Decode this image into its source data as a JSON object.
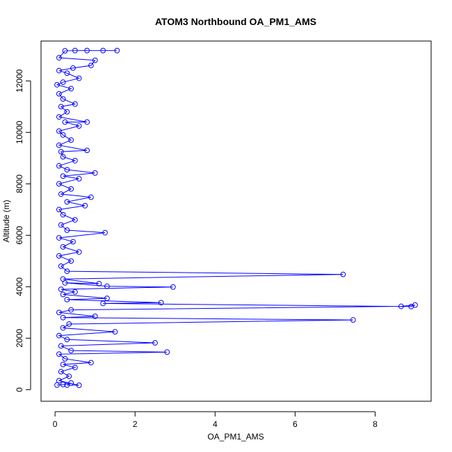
{
  "chart_data": {
    "type": "scatter",
    "title": "ATOM3 Northbound OA_PM1_AMS",
    "xlabel": "OA_PM1_AMS",
    "ylabel": "Altitude (m)",
    "xlim": [
      -0.35,
      9.4
    ],
    "ylim": [
      -450,
      13550
    ],
    "x_ticks": [
      0,
      2,
      4,
      6,
      8
    ],
    "y_ticks": [
      0,
      2000,
      4000,
      6000,
      8000,
      10000,
      12000
    ],
    "grid": false,
    "legend": "none",
    "point_style": "open-circle",
    "connect_points": true,
    "series": [
      {
        "color": "#0000ff",
        "points": [
          [
            0.05,
            180
          ],
          [
            0.2,
            200
          ],
          [
            0.4,
            260
          ],
          [
            0.3,
            180
          ],
          [
            0.6,
            170
          ],
          [
            0.1,
            350
          ],
          [
            0.35,
            520
          ],
          [
            0.15,
            700
          ],
          [
            0.5,
            860
          ],
          [
            0.2,
            980
          ],
          [
            0.9,
            1050
          ],
          [
            0.25,
            1200
          ],
          [
            0.1,
            1380
          ],
          [
            2.8,
            1460
          ],
          [
            0.4,
            1520
          ],
          [
            0.15,
            1700
          ],
          [
            2.5,
            1820
          ],
          [
            0.3,
            1950
          ],
          [
            0.1,
            2100
          ],
          [
            1.5,
            2250
          ],
          [
            0.2,
            2400
          ],
          [
            0.35,
            2550
          ],
          [
            7.45,
            2710
          ],
          [
            0.2,
            2800
          ],
          [
            1.0,
            2850
          ],
          [
            0.1,
            3000
          ],
          [
            0.4,
            3100
          ],
          [
            8.65,
            3240
          ],
          [
            9.0,
            3290
          ],
          [
            8.9,
            3230
          ],
          [
            1.2,
            3350
          ],
          [
            2.65,
            3380
          ],
          [
            0.3,
            3500
          ],
          [
            1.3,
            3550
          ],
          [
            0.2,
            3700
          ],
          [
            0.5,
            3800
          ],
          [
            0.15,
            3900
          ],
          [
            2.95,
            3990
          ],
          [
            1.3,
            4020
          ],
          [
            0.25,
            4150
          ],
          [
            1.1,
            4120
          ],
          [
            0.2,
            4300
          ],
          [
            7.2,
            4480
          ],
          [
            0.3,
            4600
          ],
          [
            0.15,
            4800
          ],
          [
            0.4,
            5000
          ],
          [
            0.1,
            5200
          ],
          [
            0.6,
            5350
          ],
          [
            0.2,
            5550
          ],
          [
            0.45,
            5750
          ],
          [
            0.1,
            5900
          ],
          [
            1.25,
            6100
          ],
          [
            0.3,
            6200
          ],
          [
            0.15,
            6400
          ],
          [
            0.5,
            6600
          ],
          [
            0.2,
            6800
          ],
          [
            0.1,
            7000
          ],
          [
            0.75,
            7150
          ],
          [
            0.3,
            7300
          ],
          [
            0.9,
            7480
          ],
          [
            0.15,
            7600
          ],
          [
            0.4,
            7800
          ],
          [
            0.1,
            8000
          ],
          [
            0.6,
            8200
          ],
          [
            0.2,
            8300
          ],
          [
            1.0,
            8420
          ],
          [
            0.3,
            8550
          ],
          [
            0.1,
            8700
          ],
          [
            0.5,
            8900
          ],
          [
            0.2,
            9050
          ],
          [
            0.15,
            9250
          ],
          [
            0.8,
            9300
          ],
          [
            0.1,
            9500
          ],
          [
            0.4,
            9700
          ],
          [
            0.2,
            9900
          ],
          [
            0.1,
            10050
          ],
          [
            0.6,
            10250
          ],
          [
            0.25,
            10400
          ],
          [
            0.8,
            10400
          ],
          [
            0.1,
            10600
          ],
          [
            0.3,
            10800
          ],
          [
            0.15,
            11000
          ],
          [
            0.5,
            11100
          ],
          [
            0.2,
            11300
          ],
          [
            0.1,
            11500
          ],
          [
            0.4,
            11700
          ],
          [
            0.05,
            11850
          ],
          [
            0.2,
            11950
          ],
          [
            0.6,
            12100
          ],
          [
            0.3,
            12300
          ],
          [
            0.1,
            12400
          ],
          [
            0.45,
            12500
          ],
          [
            0.9,
            12600
          ],
          [
            1.0,
            12800
          ],
          [
            0.1,
            12900
          ],
          [
            0.25,
            13170
          ],
          [
            0.5,
            13180
          ],
          [
            0.8,
            13180
          ],
          [
            1.2,
            13180
          ],
          [
            1.55,
            13180
          ]
        ]
      }
    ]
  }
}
